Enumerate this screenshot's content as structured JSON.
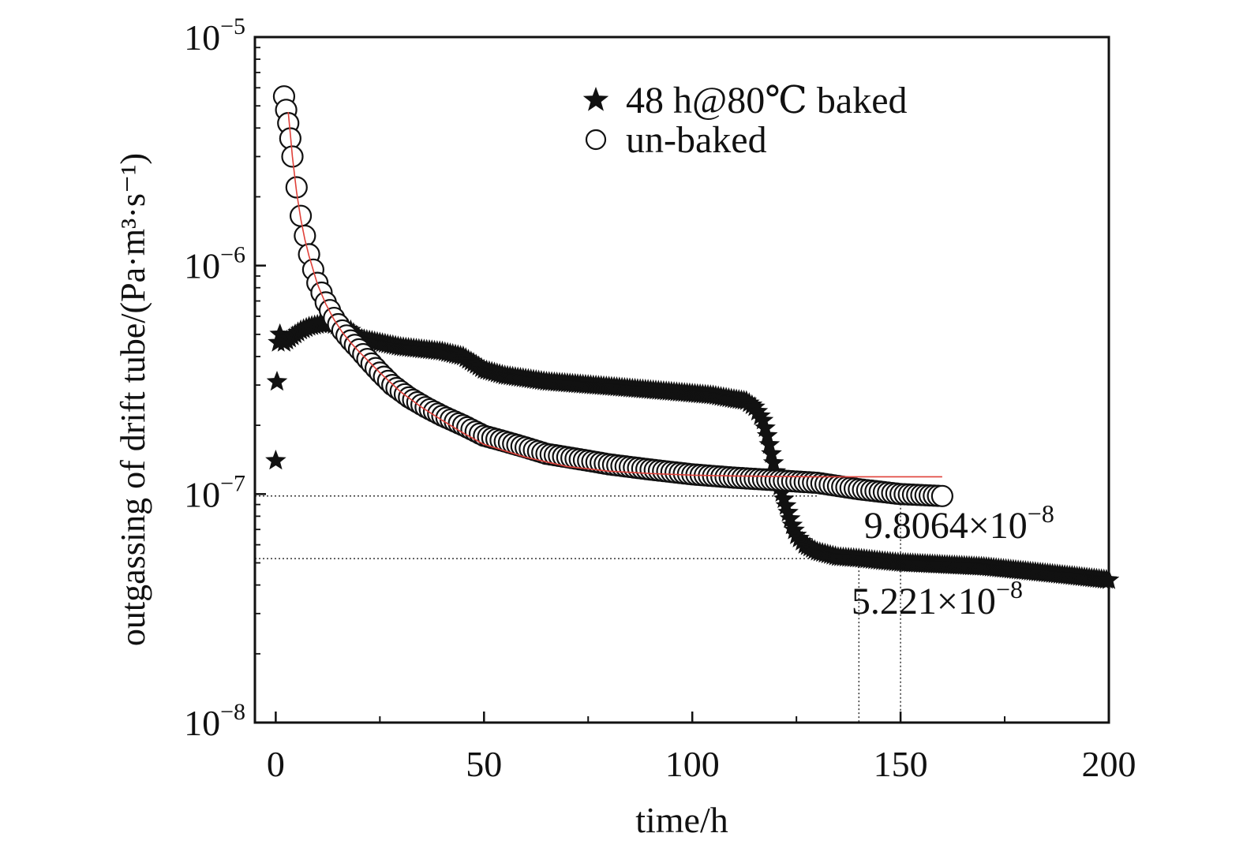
{
  "chart_data": {
    "type": "scatter",
    "xlabel": "time/h",
    "ylabel": "outgassing of drift tube/(Pa·m³·s⁻¹)",
    "xlim": [
      -5,
      200
    ],
    "ylim": [
      1e-08,
      1e-05
    ],
    "y_scale": "log",
    "x_ticks": [
      0,
      50,
      100,
      150,
      200
    ],
    "x_tick_labels": [
      "0",
      "50",
      "100",
      "150",
      "200"
    ],
    "y_ticks": [
      {
        "value": 1e-05,
        "base": "10",
        "exp": "−5"
      },
      {
        "value": 1e-06,
        "base": "10",
        "exp": "−6"
      },
      {
        "value": 1e-07,
        "base": "10",
        "exp": "−7"
      },
      {
        "value": 1e-08,
        "base": "10",
        "exp": "−8"
      }
    ],
    "legend_position": "top-center",
    "series": [
      {
        "name": "48 h@80℃ baked",
        "marker": "star",
        "color": "#111111",
        "x": [
          0,
          0.3,
          0.6,
          1,
          2,
          4,
          6,
          8,
          10,
          12,
          14,
          16,
          18,
          20,
          25,
          30,
          35,
          40,
          45,
          50,
          55,
          60,
          65,
          70,
          75,
          80,
          85,
          90,
          95,
          100,
          105,
          110,
          113,
          115,
          117,
          118,
          119,
          120,
          121,
          122,
          123,
          124,
          125,
          127,
          130,
          135,
          140,
          145,
          150,
          160,
          170,
          180,
          190,
          200
        ],
        "y": [
          1.4e-07,
          3.1e-07,
          4.6e-07,
          5e-07,
          4.6e-07,
          4.9e-07,
          5.2e-07,
          5.4e-07,
          5.5e-07,
          5.6e-07,
          5.5e-07,
          5.4e-07,
          5.2e-07,
          4.8e-07,
          4.6e-07,
          4.4e-07,
          4.3e-07,
          4.2e-07,
          4e-07,
          3.5e-07,
          3.3e-07,
          3.2e-07,
          3.1e-07,
          3.05e-07,
          3e-07,
          2.95e-07,
          2.9e-07,
          2.85e-07,
          2.8e-07,
          2.75e-07,
          2.7e-07,
          2.6e-07,
          2.55e-07,
          2.4e-07,
          2.1e-07,
          1.8e-07,
          1.5e-07,
          1.25e-07,
          1.08e-07,
          9.5e-08,
          8.3e-08,
          7.3e-08,
          6.6e-08,
          6e-08,
          5.6e-08,
          5.3e-08,
          5.221e-08,
          5.1e-08,
          5e-08,
          4.9e-08,
          4.8e-08,
          4.6e-08,
          4.4e-08,
          4.2e-08
        ]
      },
      {
        "name": "un-baked",
        "marker": "circle",
        "color": "#111111",
        "x": [
          2,
          2.5,
          3,
          3.5,
          4,
          5,
          6,
          7,
          8,
          9,
          10,
          12,
          14,
          16,
          18,
          20,
          22,
          25,
          28,
          32,
          36,
          40,
          45,
          50,
          55,
          60,
          65,
          70,
          75,
          80,
          90,
          100,
          110,
          120,
          130,
          140,
          150,
          160
        ],
        "y": [
          5.5e-06,
          4.8e-06,
          4.2e-06,
          3.6e-06,
          3e-06,
          2.2e-06,
          1.65e-06,
          1.35e-06,
          1.12e-06,
          9.6e-07,
          8.4e-07,
          6.9e-07,
          5.9e-07,
          5.2e-07,
          4.7e-07,
          4.3e-07,
          3.9e-07,
          3.4e-07,
          3e-07,
          2.65e-07,
          2.4e-07,
          2.2e-07,
          2e-07,
          1.8e-07,
          1.7e-07,
          1.6e-07,
          1.5e-07,
          1.45e-07,
          1.4e-07,
          1.35e-07,
          1.28e-07,
          1.22e-07,
          1.18e-07,
          1.15e-07,
          1.12e-07,
          1.05e-07,
          1e-07,
          9.8064e-08
        ]
      }
    ],
    "fit_curve": {
      "color": "#e0413a",
      "x": [
        3,
        4,
        5,
        6,
        7,
        8,
        10,
        12,
        14,
        16,
        18,
        20,
        25,
        30,
        35,
        40,
        45,
        50,
        60,
        70,
        80,
        90,
        100,
        110,
        120,
        130,
        140,
        150,
        160
      ],
      "y": [
        4.7e-06,
        3e-06,
        2.1e-06,
        1.6e-06,
        1.3e-06,
        1.1e-06,
        8.3e-07,
        6.8e-07,
        5.8e-07,
        5.1e-07,
        4.6e-07,
        4.2e-07,
        3.4e-07,
        2.8e-07,
        2.4e-07,
        2.1e-07,
        1.85e-07,
        1.65e-07,
        1.45e-07,
        1.32e-07,
        1.26e-07,
        1.23e-07,
        1.21e-07,
        1.2e-07,
        1.195e-07,
        1.19e-07,
        1.19e-07,
        1.19e-07,
        1.19e-07
      ]
    },
    "reference_lines": [
      {
        "type": "horizontal",
        "y": 9.8064e-08
      },
      {
        "type": "horizontal",
        "y": 5.221e-08
      },
      {
        "type": "vertical",
        "x": 140
      },
      {
        "type": "vertical",
        "x": 150
      }
    ],
    "annotations": [
      {
        "mantissa": "9.8064×10",
        "exp": "−8",
        "x": 145,
        "y": 7.3e-08
      },
      {
        "mantissa": "5.221×10",
        "exp": "−8",
        "x": 142,
        "y": 3.4e-08
      }
    ]
  }
}
